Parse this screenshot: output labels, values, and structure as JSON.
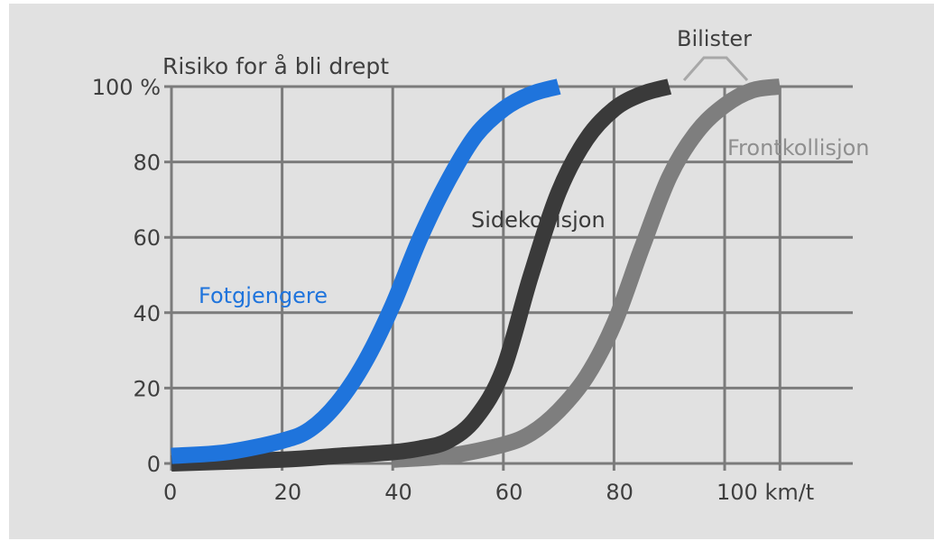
{
  "chart_data": {
    "type": "line",
    "title": "Risiko for å bli drept",
    "xlabel": "",
    "ylabel": "",
    "xlim": [
      0,
      110
    ],
    "ylim": [
      0,
      100
    ],
    "x_ticks": [
      0,
      20,
      40,
      60,
      80,
      100
    ],
    "x_tick_labels": [
      "0",
      "20",
      "40",
      "60",
      "80",
      "100 km/t"
    ],
    "y_ticks": [
      0,
      20,
      40,
      60,
      80,
      100
    ],
    "y_tick_labels": [
      "0",
      "20",
      "40",
      "60",
      "80",
      "100 %"
    ],
    "grid": true,
    "group_label": "Bilister",
    "series": [
      {
        "name": "Fotgjengere",
        "color": "#1f74dc",
        "x": [
          0,
          10,
          20,
          25,
          30,
          35,
          40,
          45,
          50,
          55,
          60,
          65,
          70
        ],
        "y": [
          2,
          3,
          6,
          9,
          16,
          27,
          42,
          60,
          75,
          87,
          94,
          98,
          100
        ]
      },
      {
        "name": "Sidekollisjon",
        "color": "#3a3a3a",
        "x": [
          0,
          20,
          30,
          40,
          45,
          50,
          55,
          60,
          65,
          70,
          75,
          80,
          85,
          90
        ],
        "y": [
          0,
          1,
          2,
          3,
          4,
          6,
          12,
          25,
          50,
          72,
          86,
          94,
          98,
          100
        ]
      },
      {
        "name": "Frontkollisjon",
        "color": "#7e7e7e",
        "x": [
          40,
          50,
          60,
          65,
          70,
          75,
          80,
          85,
          90,
          95,
          100,
          105,
          110
        ],
        "y": [
          1,
          2,
          5,
          8,
          14,
          23,
          37,
          57,
          76,
          88,
          95,
          99,
          100
        ]
      }
    ]
  }
}
